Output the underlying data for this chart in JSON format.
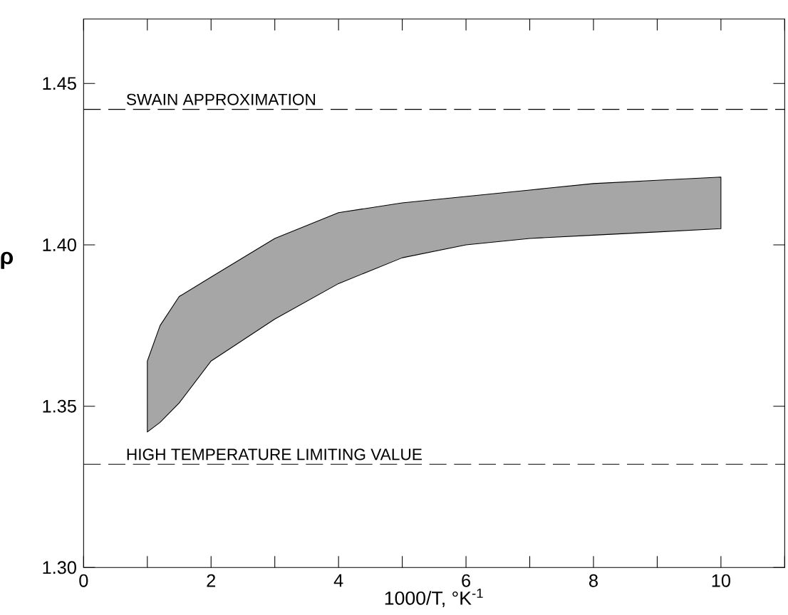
{
  "chart_data": {
    "type": "line",
    "xlabel": "1000/T, °K$^{-1}$",
    "ylabel": "ρ",
    "xlim": [
      0,
      11
    ],
    "ylim": [
      1.3,
      1.47
    ],
    "xticks": [
      0,
      {
        "value": 1,
        "label": null
      },
      2,
      {
        "value": 3,
        "label": null
      },
      4,
      {
        "value": 5,
        "label": null
      },
      6,
      {
        "value": 7,
        "label": null
      },
      8,
      {
        "value": 9,
        "label": null
      },
      10,
      {
        "value": 11,
        "label": null
      }
    ],
    "yticks": [
      {
        "value": 1.3,
        "label": "1.30"
      },
      1.35,
      {
        "value": 1.4,
        "label": "1.40"
      },
      1.45
    ],
    "series": [
      {
        "color": "#000000",
        "x": [
          1,
          1.2,
          1.5,
          2,
          3,
          4,
          5,
          6,
          7,
          8,
          9,
          10
        ],
        "values": [
          null,
          null,
          null,
          null,
          null,
          null,
          null,
          null,
          null,
          null,
          null,
          null
        ],
        "lower": [
          1.342,
          1.345,
          1.351,
          1.364,
          1.377,
          1.388,
          1.396,
          1.4,
          1.402,
          1.403,
          1.404,
          1.405
        ],
        "upper": [
          1.364,
          1.375,
          1.384,
          1.39,
          1.402,
          1.41,
          1.413,
          1.415,
          1.417,
          1.419,
          1.42,
          1.421
        ]
      }
    ],
    "ref_lines": [
      {
        "axis": "y",
        "value": 1.442,
        "label": "SWAIN APPROXIMATION",
        "line_style": "dashed"
      },
      {
        "axis": "y",
        "value": 1.332,
        "label": "HIGH TEMPERATURE LIMITING VALUE",
        "line_style": "dashed"
      }
    ]
  }
}
